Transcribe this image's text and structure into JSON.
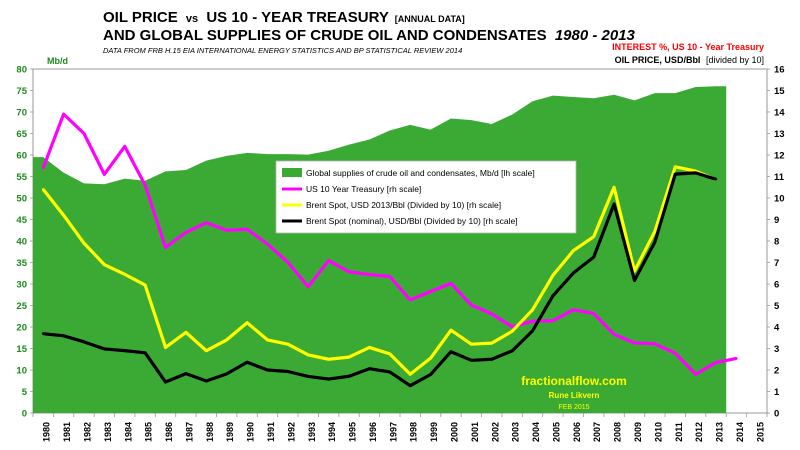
{
  "header": {
    "title_part1": "OIL PRICE",
    "title_vs": "vs",
    "title_part2": "US 10 - YEAR TREASURY",
    "title_tag": "[ANNUAL DATA]",
    "title_line2": "AND GLOBAL SUPPLIES OF CRUDE OIL AND CONDENSATES",
    "title_years": "1980 - 2013",
    "source": "DATA FROM FRB H.15  EIA INTERNATIONAL ENERGY STATISTICS AND BP STATISTICAL REVIEW 2014",
    "right_label_1": "INTEREST %, US 10 - Year Treasury",
    "right_label_2": "OIL PRICE, USD/Bbl",
    "right_label_2_suffix": "[divided by 10]",
    "left_unit": "Mb/d"
  },
  "watermark": {
    "site": "fractionalflow.com",
    "author": "Rune Likvern",
    "date": "FEB 2015"
  },
  "colors": {
    "supply_fill": "#3aaa35",
    "treasury": "#ff00ff",
    "brent_real": "#ffff00",
    "brent_nominal": "#000000",
    "title_red": "#ff0000",
    "watermark_yellow": "#ffff00"
  },
  "chart_data": {
    "type": "area",
    "x": [
      1980,
      1981,
      1982,
      1983,
      1984,
      1985,
      1986,
      1987,
      1988,
      1989,
      1990,
      1991,
      1992,
      1993,
      1994,
      1995,
      1996,
      1997,
      1998,
      1999,
      2000,
      2001,
      2002,
      2003,
      2004,
      2005,
      2006,
      2007,
      2008,
      2009,
      2010,
      2011,
      2012,
      2013,
      2014,
      2015
    ],
    "x_ticks": [
      "1980",
      "1981",
      "1982",
      "1983",
      "1984",
      "1985",
      "1986",
      "1987",
      "1988",
      "1989",
      "1990",
      "1991",
      "1992",
      "1993",
      "1994",
      "1995",
      "1996",
      "1997",
      "1998",
      "1999",
      "2000",
      "2001",
      "2002",
      "2003",
      "2004",
      "2005",
      "2006",
      "2007",
      "2008",
      "2009",
      "2010",
      "2011",
      "2012",
      "2013",
      "2014",
      "2015"
    ],
    "y_left": {
      "unit": "Mb/d",
      "range": [
        0,
        80
      ],
      "ticks": [
        "0",
        "5",
        "10",
        "15",
        "20",
        "25",
        "30",
        "35",
        "40",
        "45",
        "50",
        "55",
        "60",
        "65",
        "70",
        "75",
        "80"
      ]
    },
    "y_right": {
      "range": [
        0,
        16
      ],
      "ticks": [
        "0",
        "1",
        "2",
        "3",
        "4",
        "5",
        "6",
        "7",
        "8",
        "9",
        "10",
        "11",
        "12",
        "13",
        "14",
        "15",
        "16"
      ]
    },
    "grid": false,
    "legend_position": "center",
    "series": [
      {
        "name": "Global supplies of crude oil and condensates, Mb/d [lh scale]",
        "type": "area",
        "axis": "left",
        "x": [
          1980,
          1981,
          1982,
          1983,
          1984,
          1985,
          1986,
          1987,
          1988,
          1989,
          1990,
          1991,
          1992,
          1993,
          1994,
          1995,
          1996,
          1997,
          1998,
          1999,
          2000,
          2001,
          2002,
          2003,
          2004,
          2005,
          2006,
          2007,
          2008,
          2009,
          2010,
          2011,
          2012,
          2013
        ],
        "values": [
          59.5,
          55.9,
          53.4,
          53.2,
          54.5,
          54.0,
          56.2,
          56.5,
          58.7,
          59.8,
          60.5,
          60.2,
          60.2,
          60.1,
          61.0,
          62.4,
          63.6,
          65.7,
          67.0,
          65.9,
          68.5,
          68.1,
          67.2,
          69.4,
          72.5,
          73.8,
          73.5,
          73.2,
          74.0,
          72.7,
          74.4,
          74.4,
          75.8,
          76.0
        ]
      },
      {
        "name": "US 10 Year Treasury [rh scale]",
        "type": "line",
        "axis": "right",
        "x": [
          1980,
          1981,
          1982,
          1983,
          1984,
          1985,
          1986,
          1987,
          1988,
          1989,
          1990,
          1991,
          1992,
          1993,
          1994,
          1995,
          1996,
          1997,
          1998,
          1999,
          2000,
          2001,
          2002,
          2003,
          2004,
          2005,
          2006,
          2007,
          2008,
          2009,
          2010,
          2011,
          2012,
          2013,
          2014
        ],
        "values": [
          11.4,
          13.9,
          13.0,
          11.1,
          12.4,
          10.6,
          7.7,
          8.4,
          8.85,
          8.5,
          8.55,
          7.86,
          7.01,
          5.87,
          7.09,
          6.57,
          6.44,
          6.35,
          5.26,
          5.65,
          6.03,
          5.02,
          4.61,
          4.01,
          4.27,
          4.29,
          4.8,
          4.63,
          3.66,
          3.26,
          3.22,
          2.78,
          1.8,
          2.35,
          2.54
        ]
      },
      {
        "name": "Brent Spot, USD 2013/Bbl (Divided by 10) [rh scale]",
        "type": "line",
        "axis": "right",
        "x": [
          1980,
          1981,
          1982,
          1983,
          1984,
          1985,
          1986,
          1987,
          1988,
          1989,
          1990,
          1991,
          1992,
          1993,
          1994,
          1995,
          1996,
          1997,
          1998,
          1999,
          2000,
          2001,
          2002,
          2003,
          2004,
          2005,
          2006,
          2007,
          2008,
          2009,
          2010,
          2011,
          2012,
          2013
        ],
        "values": [
          10.4,
          9.2,
          7.9,
          6.9,
          6.45,
          5.95,
          3.05,
          3.75,
          2.9,
          3.4,
          4.2,
          3.4,
          3.2,
          2.7,
          2.5,
          2.6,
          3.05,
          2.75,
          1.8,
          2.55,
          3.85,
          3.2,
          3.25,
          3.8,
          4.8,
          6.4,
          7.55,
          8.2,
          10.5,
          6.6,
          8.45,
          11.45,
          11.25,
          10.85
        ]
      },
      {
        "name": "Brent Spot (nominal), USD/Bbl (Divided by 10) [rh scale]",
        "type": "line",
        "axis": "right",
        "x": [
          1980,
          1981,
          1982,
          1983,
          1984,
          1985,
          1986,
          1987,
          1988,
          1989,
          1990,
          1991,
          1992,
          1993,
          1994,
          1995,
          1996,
          1997,
          1998,
          1999,
          2000,
          2001,
          2002,
          2003,
          2004,
          2005,
          2006,
          2007,
          2008,
          2009,
          2010,
          2011,
          2012,
          2013
        ],
        "values": [
          3.69,
          3.59,
          3.31,
          2.98,
          2.9,
          2.8,
          1.44,
          1.83,
          1.49,
          1.82,
          2.36,
          2.0,
          1.93,
          1.7,
          1.58,
          1.71,
          2.06,
          1.91,
          1.27,
          1.79,
          2.85,
          2.45,
          2.5,
          2.89,
          3.82,
          5.45,
          6.51,
          7.25,
          9.72,
          6.17,
          7.95,
          11.11,
          11.17,
          10.87
        ]
      }
    ]
  }
}
